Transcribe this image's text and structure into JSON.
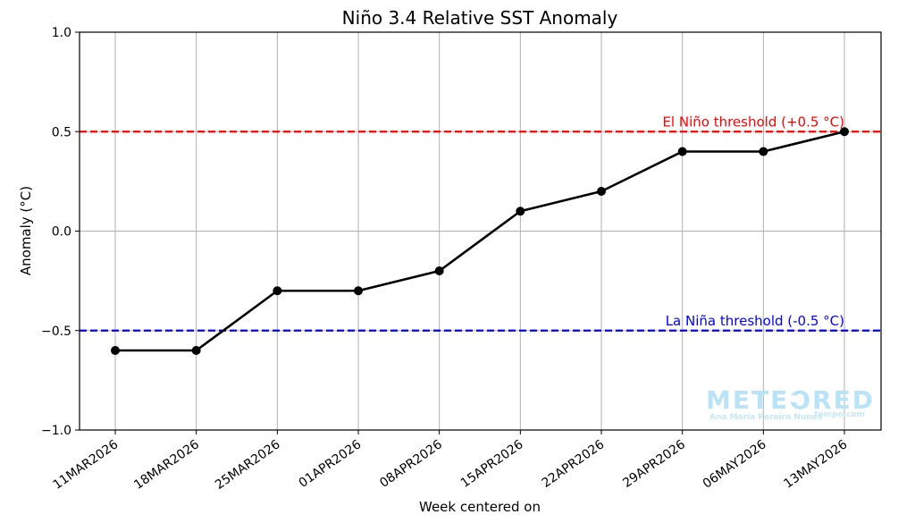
{
  "chart_data": {
    "type": "line",
    "title": "Niño 3.4 Relative SST Anomaly",
    "xlabel": "Week centered on",
    "ylabel": "Anomaly (°C)",
    "categories": [
      "11MAR2026",
      "18MAR2026",
      "25MAR2026",
      "01APR2026",
      "08APR2026",
      "15APR2026",
      "22APR2026",
      "29APR2026",
      "06MAY2026",
      "13MAY2026"
    ],
    "series": [
      {
        "values": [
          -0.6,
          -0.6,
          -0.3,
          -0.3,
          -0.2,
          0.1,
          0.2,
          0.4,
          0.4,
          0.5
        ],
        "color": "#000000"
      }
    ],
    "ylim": [
      -1.0,
      1.0
    ],
    "yticks": [
      -1.0,
      -0.5,
      0.0,
      0.5,
      1.0
    ],
    "ytick_labels": [
      "−1.0",
      "−0.5",
      "0.0",
      "0.5",
      "1.0"
    ],
    "grid": true,
    "reference_lines": [
      {
        "value": 0.5,
        "label": "El Niño threshold (+0.5 °C)",
        "color": "#ff0000"
      },
      {
        "value": -0.5,
        "label": "La Niña threshold (-0.5 °C)",
        "color": "#0000ff"
      }
    ]
  },
  "watermark": {
    "brand": "METEORED",
    "author": "Ana María Pereira Nunes",
    "site": "tempo.com",
    "color": "#b9e3f7"
  }
}
